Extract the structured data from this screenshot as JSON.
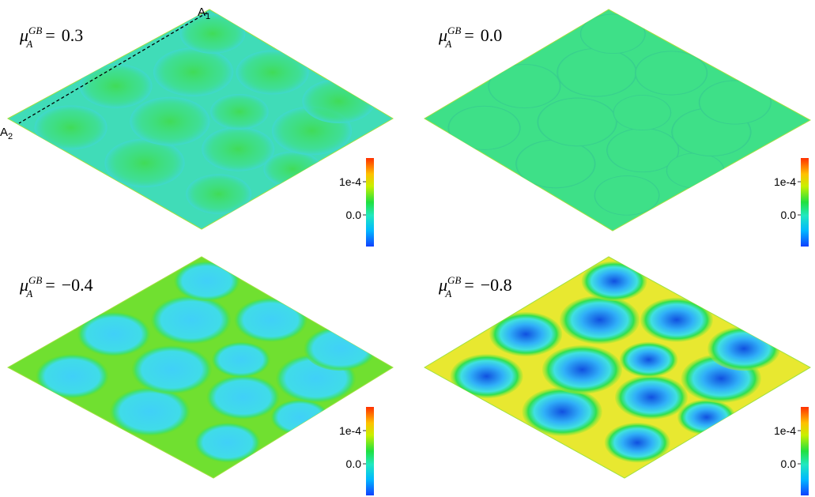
{
  "panels": [
    {
      "label": {
        "symbol": "μ",
        "subscript": "A",
        "superscript": "GB",
        "equals": "=",
        "value": "0.3"
      },
      "colorbar": {
        "ticks": [
          "1e-4",
          "0.0"
        ]
      },
      "markers": [
        {
          "letter": "A",
          "subscript": "1"
        },
        {
          "letter": "A",
          "subscript": "2"
        }
      ]
    },
    {
      "label": {
        "symbol": "μ",
        "subscript": "A",
        "superscript": "GB",
        "equals": "=",
        "value": "0.0"
      },
      "colorbar": {
        "ticks": [
          "1e-4",
          "0.0"
        ]
      }
    },
    {
      "label": {
        "symbol": "μ",
        "subscript": "A",
        "superscript": "GB",
        "equals": "=",
        "value": "−0.4"
      },
      "colorbar": {
        "ticks": [
          "1e-4",
          "0.0"
        ]
      }
    },
    {
      "label": {
        "symbol": "μ",
        "subscript": "A",
        "superscript": "GB",
        "equals": "=",
        "value": "−0.8"
      },
      "colorbar": {
        "ticks": [
          "1e-4",
          "0.0"
        ]
      }
    }
  ]
}
